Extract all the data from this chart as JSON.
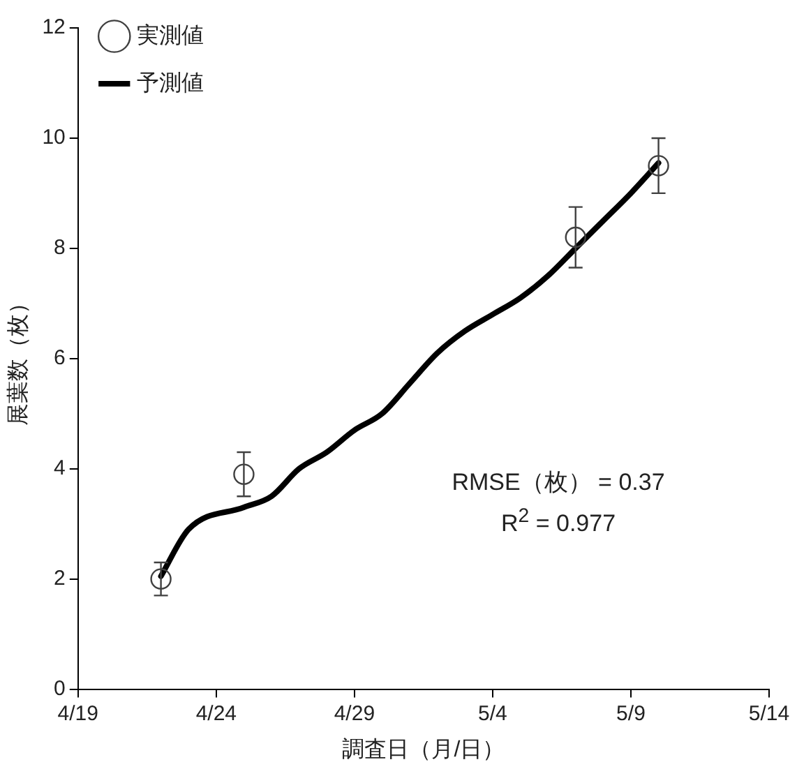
{
  "chart_data": {
    "type": "line",
    "xlabel": "調査日（月/日）",
    "ylabel": "展葉数（枚）",
    "series": [
      {
        "name": "実測値",
        "type": "scatter",
        "marker": "circle",
        "color": "#404040",
        "x": [
          "--04-22",
          "--04-25",
          "--05-07",
          "--05-10"
        ],
        "values": [
          2.0,
          3.9,
          8.2,
          9.5
        ],
        "errors": [
          0.3,
          0.4,
          0.55,
          0.5
        ]
      },
      {
        "name": "予測値",
        "type": "line",
        "marker": "none",
        "line_style": "solid",
        "color": "#000000",
        "x": [
          "--04-22",
          "--04-23",
          "--04-25",
          "--04-26",
          "--04-27",
          "--04-28",
          "--04-29",
          "--04-30",
          "--05-01",
          "--05-02",
          "--05-03",
          "--05-04",
          "--05-05",
          "--05-06",
          "--05-07",
          "--05-08",
          "--05-09",
          "--05-10"
        ],
        "values": [
          2.05,
          2.9,
          3.3,
          3.5,
          4.0,
          4.3,
          4.7,
          5.0,
          5.55,
          6.1,
          6.5,
          6.8,
          7.1,
          7.5,
          8.0,
          8.5,
          9.0,
          9.55
        ]
      }
    ],
    "xlim": [
      "--04-19",
      "--05-14"
    ],
    "xticks": [
      {
        "value": "--04-19",
        "label": "4/19"
      },
      {
        "value": "--04-24",
        "label": "4/24"
      },
      {
        "value": "--04-29",
        "label": "4/29"
      },
      {
        "value": "--05-04",
        "label": "5/4"
      },
      {
        "value": "--05-09",
        "label": "5/9"
      },
      {
        "value": "--05-14",
        "label": "5/14"
      }
    ],
    "ylim": [
      0,
      12
    ],
    "yticks": [
      0,
      2,
      4,
      6,
      8,
      10,
      12
    ],
    "grid": false,
    "legend": "top left",
    "annotations": [
      "RMSE（枚） = 0.37\nR$^{2}$ = 0.977"
    ]
  }
}
